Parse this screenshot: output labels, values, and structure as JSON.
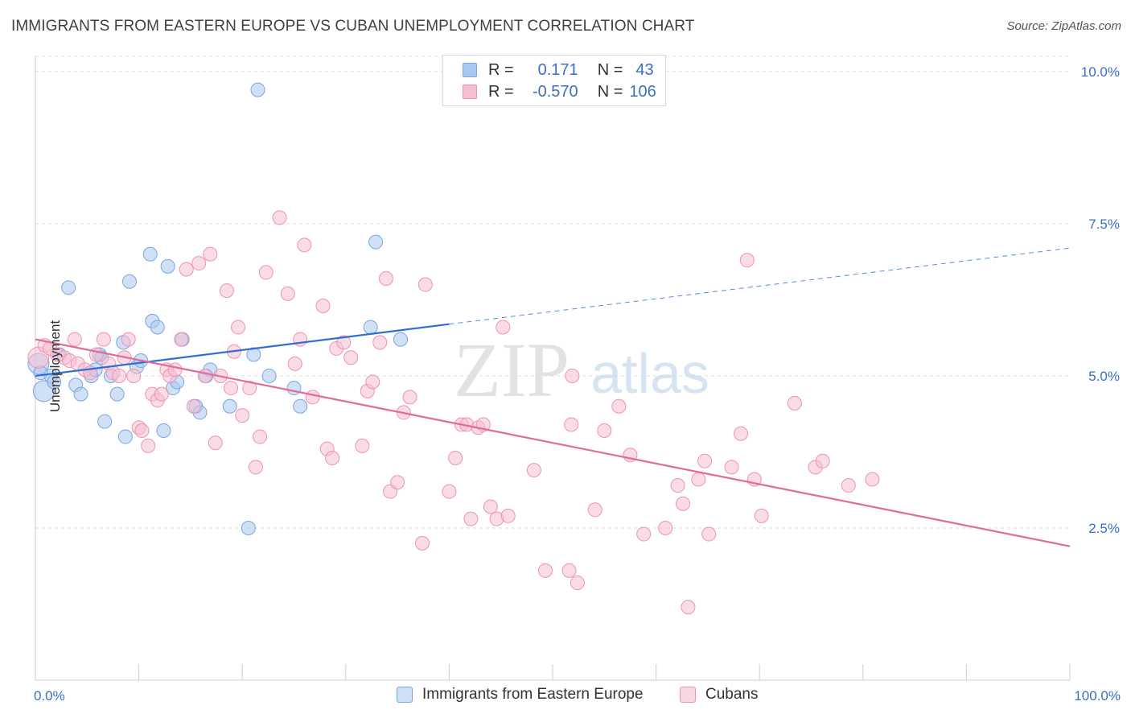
{
  "title": "IMMIGRANTS FROM EASTERN EUROPE VS CUBAN UNEMPLOYMENT CORRELATION CHART",
  "source": "Source: ZipAtlas.com",
  "watermark": {
    "zip": "ZIP",
    "atlas": "atlas"
  },
  "legend": {
    "r_label": "R =",
    "n_label": "N =",
    "rows": [
      {
        "r": "0.171",
        "n": "43",
        "color": "#a9c8ef",
        "border": "#7aa6df"
      },
      {
        "r": "-0.570",
        "n": "106",
        "color": "#f6bfd1",
        "border": "#ee93b1"
      }
    ]
  },
  "bottom_legend": [
    {
      "label": "Immigrants from Eastern Europe",
      "color": "#a9c8ef",
      "border": "#7aa6df"
    },
    {
      "label": "Cubans",
      "color": "#f6bfd1",
      "border": "#ee93b1"
    }
  ],
  "chart_data": {
    "type": "scatter",
    "title": "IMMIGRANTS FROM EASTERN EUROPE VS CUBAN UNEMPLOYMENT CORRELATION CHART",
    "xlabel": "",
    "ylabel": "Unemployment",
    "xlim": [
      0,
      100
    ],
    "ylim": [
      0,
      10.25
    ],
    "x_tick_labels": [
      "0.0%",
      "100.0%"
    ],
    "y_ticks": [
      2.5,
      5.0,
      7.5,
      10.0
    ],
    "y_tick_labels": [
      "2.5%",
      "5.0%",
      "7.5%",
      "10.0%"
    ],
    "grid": true,
    "legend_position": "top-center",
    "series": [
      {
        "name": "Immigrants from Eastern Europe",
        "color": "#a9c8ef",
        "edge": "#7aa6df",
        "line_color": "#2f6fd2",
        "trend": {
          "x": [
            0,
            40,
            100
          ],
          "y": [
            5.0,
            5.85,
            7.1
          ],
          "solid_until": 40
        },
        "points": [
          [
            0.3,
            5.2
          ],
          [
            0.8,
            4.75
          ],
          [
            1.5,
            5.0
          ],
          [
            1.8,
            4.9
          ],
          [
            2.3,
            5.35
          ],
          [
            3.2,
            6.45
          ],
          [
            3.9,
            4.85
          ],
          [
            4.4,
            4.7
          ],
          [
            5.4,
            5.0
          ],
          [
            5.8,
            5.1
          ],
          [
            6.2,
            5.35
          ],
          [
            6.4,
            5.3
          ],
          [
            6.7,
            4.25
          ],
          [
            7.3,
            5.0
          ],
          [
            7.9,
            4.7
          ],
          [
            8.5,
            5.55
          ],
          [
            8.7,
            4.0
          ],
          [
            9.1,
            6.55
          ],
          [
            9.8,
            5.15
          ],
          [
            10.2,
            5.25
          ],
          [
            11.1,
            7.0
          ],
          [
            11.3,
            5.9
          ],
          [
            11.8,
            5.8
          ],
          [
            12.4,
            4.1
          ],
          [
            12.8,
            6.8
          ],
          [
            13.3,
            4.8
          ],
          [
            13.7,
            4.9
          ],
          [
            14.2,
            5.6
          ],
          [
            15.5,
            4.5
          ],
          [
            15.9,
            4.4
          ],
          [
            16.5,
            5.0
          ],
          [
            16.9,
            5.1
          ],
          [
            18.8,
            4.5
          ],
          [
            20.6,
            2.5
          ],
          [
            21.1,
            5.35
          ],
          [
            21.5,
            9.7
          ],
          [
            22.6,
            5.0
          ],
          [
            25.0,
            4.8
          ],
          [
            25.6,
            4.5
          ],
          [
            32.4,
            5.8
          ],
          [
            32.9,
            7.2
          ],
          [
            35.3,
            5.6
          ],
          [
            0.5,
            5.05
          ]
        ],
        "big_points": [
          [
            0.8,
            4.75
          ],
          [
            0.3,
            5.2
          ]
        ]
      },
      {
        "name": "Cubans",
        "color": "#f6bfd1",
        "edge": "#ee93b1",
        "line_color": "#e4699a",
        "trend": {
          "x": [
            0,
            100
          ],
          "y": [
            5.6,
            2.2
          ],
          "solid_until": 100
        },
        "points": [
          [
            0.3,
            5.3
          ],
          [
            0.9,
            5.5
          ],
          [
            1.4,
            5.45
          ],
          [
            2.1,
            5.35
          ],
          [
            2.8,
            5.3
          ],
          [
            3.3,
            5.25
          ],
          [
            3.8,
            5.6
          ],
          [
            4.1,
            5.2
          ],
          [
            4.8,
            5.1
          ],
          [
            5.3,
            5.05
          ],
          [
            5.9,
            5.35
          ],
          [
            6.6,
            5.6
          ],
          [
            7.1,
            5.2
          ],
          [
            7.5,
            5.05
          ],
          [
            8.1,
            5.0
          ],
          [
            8.6,
            5.3
          ],
          [
            9.0,
            5.6
          ],
          [
            9.5,
            5.0
          ],
          [
            10.0,
            4.15
          ],
          [
            10.3,
            4.1
          ],
          [
            10.9,
            3.85
          ],
          [
            11.3,
            4.7
          ],
          [
            11.8,
            4.6
          ],
          [
            12.2,
            4.7
          ],
          [
            12.7,
            5.1
          ],
          [
            13.0,
            5.0
          ],
          [
            13.5,
            5.1
          ],
          [
            14.1,
            5.6
          ],
          [
            14.6,
            6.75
          ],
          [
            15.3,
            4.5
          ],
          [
            15.8,
            6.85
          ],
          [
            16.4,
            5.0
          ],
          [
            16.9,
            7.0
          ],
          [
            17.4,
            3.9
          ],
          [
            17.9,
            5.0
          ],
          [
            18.5,
            6.4
          ],
          [
            18.9,
            4.8
          ],
          [
            19.2,
            5.4
          ],
          [
            19.6,
            5.8
          ],
          [
            20.0,
            4.35
          ],
          [
            20.7,
            4.8
          ],
          [
            21.3,
            3.5
          ],
          [
            21.7,
            4.0
          ],
          [
            22.3,
            6.7
          ],
          [
            23.6,
            7.6
          ],
          [
            24.4,
            6.35
          ],
          [
            25.1,
            5.2
          ],
          [
            25.6,
            5.6
          ],
          [
            26.0,
            7.15
          ],
          [
            26.8,
            4.65
          ],
          [
            27.8,
            6.15
          ],
          [
            28.2,
            3.8
          ],
          [
            28.7,
            3.65
          ],
          [
            29.1,
            5.45
          ],
          [
            29.8,
            5.55
          ],
          [
            30.5,
            5.3
          ],
          [
            31.6,
            3.85
          ],
          [
            32.1,
            4.75
          ],
          [
            32.6,
            4.9
          ],
          [
            33.3,
            5.55
          ],
          [
            33.9,
            6.6
          ],
          [
            34.3,
            3.1
          ],
          [
            35.0,
            3.25
          ],
          [
            35.6,
            4.4
          ],
          [
            36.2,
            4.65
          ],
          [
            37.4,
            2.25
          ],
          [
            37.7,
            6.5
          ],
          [
            40.0,
            3.1
          ],
          [
            40.6,
            3.65
          ],
          [
            41.2,
            4.2
          ],
          [
            41.7,
            4.2
          ],
          [
            42.1,
            2.65
          ],
          [
            42.8,
            4.15
          ],
          [
            43.3,
            4.2
          ],
          [
            44.0,
            2.85
          ],
          [
            44.6,
            2.65
          ],
          [
            45.2,
            5.8
          ],
          [
            45.7,
            2.7
          ],
          [
            48.2,
            3.45
          ],
          [
            49.3,
            1.8
          ],
          [
            51.6,
            1.8
          ],
          [
            51.8,
            4.2
          ],
          [
            51.9,
            5.0
          ],
          [
            52.4,
            1.6
          ],
          [
            54.1,
            2.8
          ],
          [
            55.0,
            4.1
          ],
          [
            56.4,
            4.5
          ],
          [
            57.5,
            3.7
          ],
          [
            58.8,
            2.4
          ],
          [
            60.9,
            2.5
          ],
          [
            62.1,
            3.2
          ],
          [
            62.6,
            2.9
          ],
          [
            63.1,
            1.2
          ],
          [
            64.1,
            3.3
          ],
          [
            64.7,
            3.6
          ],
          [
            65.1,
            2.4
          ],
          [
            67.3,
            3.5
          ],
          [
            68.2,
            4.05
          ],
          [
            68.8,
            6.9
          ],
          [
            69.5,
            3.3
          ],
          [
            70.2,
            2.7
          ],
          [
            73.4,
            4.55
          ],
          [
            75.4,
            3.5
          ],
          [
            76.1,
            3.6
          ],
          [
            78.6,
            3.2
          ],
          [
            80.9,
            3.3
          ]
        ],
        "big_points": [
          [
            0.3,
            5.3
          ]
        ]
      }
    ]
  }
}
